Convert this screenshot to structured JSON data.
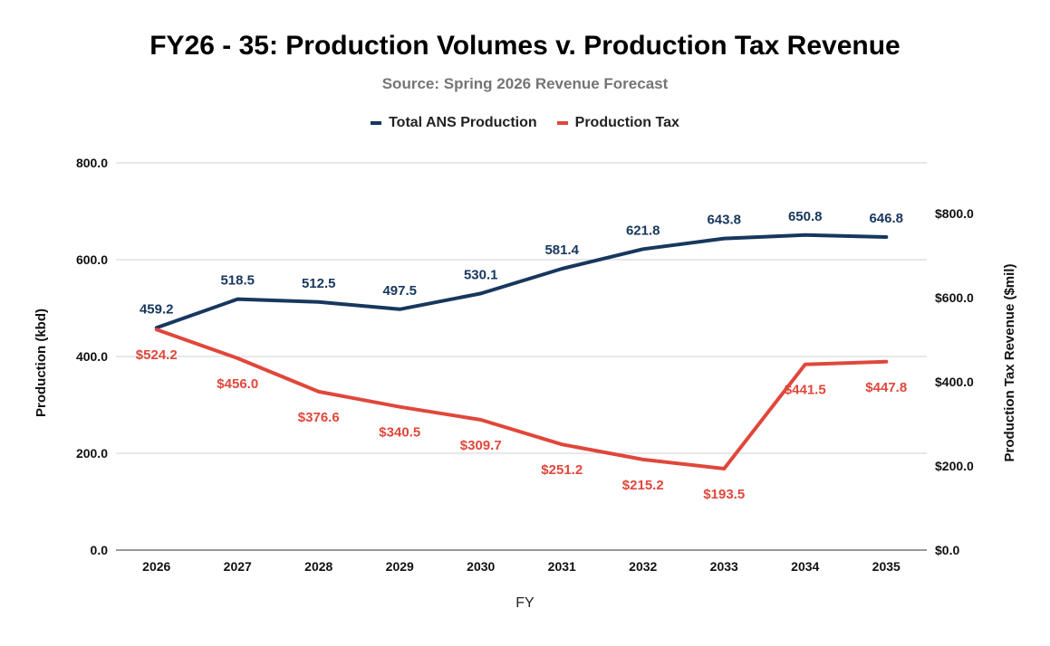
{
  "header": {
    "title": "FY26 - 35: Production Volumes v. Production Tax Revenue",
    "subtitle": "Source: Spring 2026 Revenue Forecast"
  },
  "legend": [
    {
      "label": "Total ANS Production",
      "color": "#17375e"
    },
    {
      "label": "Production Tax",
      "color": "#e0473b"
    }
  ],
  "chart_data": {
    "type": "line",
    "title": "FY26 - 35: Production Volumes v. Production Tax Revenue",
    "subtitle": "Source: Spring 2026 Revenue Forecast",
    "xlabel": "FY",
    "ylabel": "Production (kbd)",
    "y2label": "Production Tax Revenue ($mil)",
    "categories": [
      "2026",
      "2027",
      "2028",
      "2029",
      "2030",
      "2031",
      "2032",
      "2033",
      "2034",
      "2035"
    ],
    "ylim": [
      0,
      800
    ],
    "y2lim": [
      0,
      800
    ],
    "y_ticks": [
      "0.0",
      "200.0",
      "400.0",
      "600.0",
      "800.0"
    ],
    "y2_ticks": [
      "$0.0",
      "$200.0",
      "$400.0",
      "$600.0",
      "$800.0"
    ],
    "grid": true,
    "legend_position": "top",
    "series": [
      {
        "name": "Total ANS Production",
        "axis": "left",
        "color": "#17375e",
        "values": [
          459.2,
          518.5,
          512.5,
          497.5,
          530.1,
          581.4,
          621.8,
          643.8,
          650.8,
          646.8
        ],
        "labels": [
          "459.2",
          "518.5",
          "512.5",
          "497.5",
          "530.1",
          "581.4",
          "621.8",
          "643.8",
          "650.8",
          "646.8"
        ]
      },
      {
        "name": "Production Tax",
        "axis": "right",
        "color": "#e0473b",
        "values": [
          524.2,
          456.0,
          376.6,
          340.5,
          309.7,
          251.2,
          215.2,
          193.5,
          441.5,
          447.8
        ],
        "labels": [
          "$524.2",
          "$456.0",
          "$376.6",
          "$340.5",
          "$309.7",
          "$251.2",
          "$215.2",
          "$193.5",
          "$441.5",
          "$447.8"
        ]
      }
    ]
  }
}
